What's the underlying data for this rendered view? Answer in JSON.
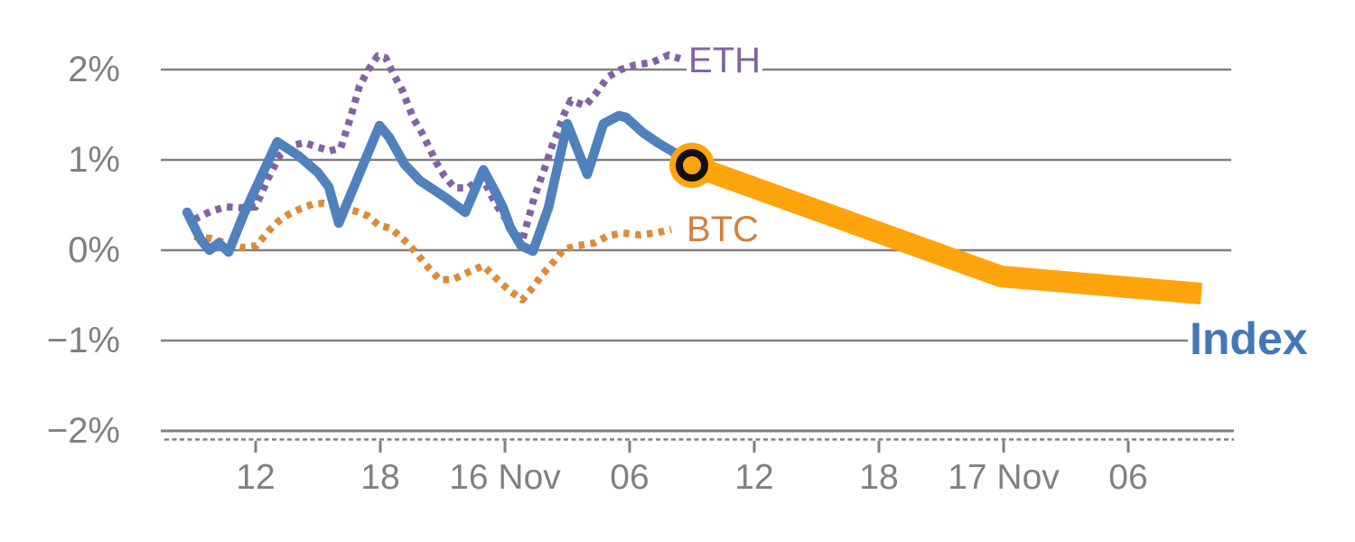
{
  "chart_data": {
    "type": "line",
    "title": "",
    "x_axis": {
      "unit": "time, major ticks every 6 hours",
      "ticks": [
        {
          "t": 0,
          "label": "12"
        },
        {
          "t": 6,
          "label": "18"
        },
        {
          "t": 12,
          "label": "16 Nov"
        },
        {
          "t": 18,
          "label": "06"
        },
        {
          "t": 24,
          "label": "12"
        },
        {
          "t": 30,
          "label": "18"
        },
        {
          "t": 36,
          "label": "17 Nov"
        },
        {
          "t": 42,
          "label": "06"
        }
      ],
      "range_t": [
        -4.55,
        47.1
      ]
    },
    "y_axis": {
      "unit": "percent change",
      "ticks": [
        {
          "value": 2,
          "label": "2%"
        },
        {
          "value": 1,
          "label": "1%"
        },
        {
          "value": 0,
          "label": "0%"
        },
        {
          "value": -1,
          "label": "−1%"
        },
        {
          "value": -2,
          "label": "−2%"
        }
      ],
      "range": [
        -2.4,
        2.4
      ],
      "grid": true
    },
    "style": {
      "grid_color": "#808080",
      "axis_color": "#808080",
      "tick_text_color": "#808080",
      "background": "#ffffff"
    },
    "series": [
      {
        "name": "ETH",
        "color": "#8064A2",
        "line_style": "dotted",
        "width": 8,
        "points": [
          [
            -2.96,
            0.34
          ],
          [
            -2.17,
            0.43
          ],
          [
            -1.43,
            0.48
          ],
          [
            -0.7,
            0.47
          ],
          [
            0.0,
            0.48
          ],
          [
            0.61,
            0.8
          ],
          [
            1.17,
            1.05
          ],
          [
            1.74,
            1.16
          ],
          [
            2.35,
            1.19
          ],
          [
            3.0,
            1.14
          ],
          [
            3.57,
            1.1
          ],
          [
            4.09,
            1.13
          ],
          [
            4.57,
            1.47
          ],
          [
            5.0,
            1.82
          ],
          [
            5.43,
            2.0
          ],
          [
            5.87,
            2.15
          ],
          [
            6.26,
            2.13
          ],
          [
            6.65,
            1.94
          ],
          [
            7.04,
            1.78
          ],
          [
            7.61,
            1.45
          ],
          [
            8.0,
            1.3
          ],
          [
            8.35,
            1.14
          ],
          [
            8.7,
            0.97
          ],
          [
            9.09,
            0.82
          ],
          [
            9.57,
            0.69
          ],
          [
            10.22,
            0.69
          ],
          [
            10.83,
            0.8
          ],
          [
            11.17,
            0.69
          ],
          [
            11.52,
            0.52
          ],
          [
            11.91,
            0.39
          ],
          [
            12.35,
            0.24
          ],
          [
            12.83,
            0.1
          ],
          [
            13.43,
            0.6
          ],
          [
            13.87,
            0.88
          ],
          [
            14.26,
            1.15
          ],
          [
            14.57,
            1.33
          ],
          [
            14.87,
            1.52
          ],
          [
            15.17,
            1.66
          ],
          [
            15.87,
            1.6
          ],
          [
            16.39,
            1.74
          ],
          [
            16.96,
            1.92
          ],
          [
            17.57,
            2.0
          ],
          [
            18.26,
            2.05
          ],
          [
            19.09,
            2.08
          ],
          [
            19.87,
            2.16
          ],
          [
            20.43,
            2.12
          ]
        ]
      },
      {
        "name": "BTC",
        "color": "#DE8A3C",
        "line_style": "dotted",
        "width": 8,
        "points": [
          [
            -2.96,
            0.15
          ],
          [
            -2.13,
            0.13
          ],
          [
            -1.43,
            0.08
          ],
          [
            -0.7,
            0.03
          ],
          [
            0.04,
            0.05
          ],
          [
            0.61,
            0.21
          ],
          [
            1.09,
            0.32
          ],
          [
            1.61,
            0.4
          ],
          [
            2.17,
            0.46
          ],
          [
            2.74,
            0.51
          ],
          [
            3.26,
            0.52
          ],
          [
            3.78,
            0.49
          ],
          [
            4.3,
            0.46
          ],
          [
            4.83,
            0.43
          ],
          [
            5.39,
            0.38
          ],
          [
            5.91,
            0.28
          ],
          [
            6.52,
            0.24
          ],
          [
            6.96,
            0.15
          ],
          [
            7.39,
            0.06
          ],
          [
            7.87,
            -0.07
          ],
          [
            8.3,
            -0.19
          ],
          [
            8.87,
            -0.33
          ],
          [
            9.52,
            -0.32
          ],
          [
            10.17,
            -0.25
          ],
          [
            10.96,
            -0.17
          ],
          [
            11.52,
            -0.3
          ],
          [
            12.13,
            -0.43
          ],
          [
            12.83,
            -0.55
          ],
          [
            13.35,
            -0.41
          ],
          [
            13.83,
            -0.26
          ],
          [
            14.3,
            -0.14
          ],
          [
            14.83,
            0.01
          ],
          [
            15.48,
            0.05
          ],
          [
            16.3,
            0.08
          ],
          [
            16.96,
            0.16
          ],
          [
            17.7,
            0.19
          ],
          [
            18.48,
            0.17
          ],
          [
            19.22,
            0.19
          ],
          [
            20.0,
            0.23
          ]
        ]
      },
      {
        "name": "Index",
        "color": "#4F81BD",
        "line_style": "solid",
        "width": 10.5,
        "points": [
          [
            -3.3,
            0.42
          ],
          [
            -2.65,
            0.12
          ],
          [
            -2.22,
            0.0
          ],
          [
            -1.78,
            0.08
          ],
          [
            -1.3,
            -0.02
          ],
          [
            -0.57,
            0.4
          ],
          [
            1.04,
            1.2
          ],
          [
            2.04,
            1.05
          ],
          [
            3.0,
            0.86
          ],
          [
            3.52,
            0.7
          ],
          [
            4.0,
            0.3
          ],
          [
            5.96,
            1.38
          ],
          [
            6.43,
            1.25
          ],
          [
            7.17,
            0.95
          ],
          [
            7.91,
            0.77
          ],
          [
            8.57,
            0.67
          ],
          [
            9.22,
            0.57
          ],
          [
            10.09,
            0.42
          ],
          [
            10.96,
            0.89
          ],
          [
            11.48,
            0.67
          ],
          [
            11.91,
            0.47
          ],
          [
            12.26,
            0.25
          ],
          [
            12.78,
            0.05
          ],
          [
            13.35,
            -0.01
          ],
          [
            14.09,
            0.47
          ],
          [
            15.0,
            1.4
          ],
          [
            15.96,
            0.84
          ],
          [
            16.74,
            1.4
          ],
          [
            17.48,
            1.49
          ],
          [
            17.83,
            1.47
          ],
          [
            18.65,
            1.3
          ],
          [
            19.35,
            1.19
          ],
          [
            20.09,
            1.09
          ],
          [
            21.0,
            0.94
          ]
        ]
      },
      {
        "name": "Index forecast",
        "color": "#FFA40D",
        "line_style": "solid",
        "width": 24,
        "points": [
          [
            21.0,
            0.94
          ],
          [
            35.87,
            -0.29
          ],
          [
            45.52,
            -0.48
          ]
        ]
      }
    ],
    "marker": {
      "name": "forecast-start-marker",
      "t": 21.0,
      "value": 0.94,
      "halo_color": "#FFA40D",
      "ring_color": "#111111"
    },
    "annotations": [
      {
        "text": "ETH",
        "color": "#8064A2",
        "t": 20.74,
        "value": 2.1
      },
      {
        "text": "BTC",
        "color": "#D2813E",
        "t": 20.65,
        "value": 0.23
      },
      {
        "text": "Index",
        "color": "#4377B6",
        "t": 44.87,
        "value": -0.98
      }
    ],
    "legend_position": "inline-end-of-line"
  }
}
